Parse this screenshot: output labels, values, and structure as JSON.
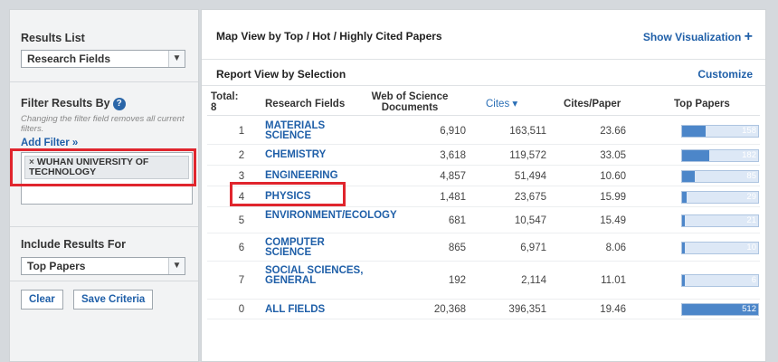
{
  "sidebar": {
    "results_list": {
      "title": "Results List",
      "selected": "Research Fields"
    },
    "filter": {
      "title": "Filter Results By",
      "hint": "Changing the filter field removes all current filters.",
      "add_filter": "Add Filter »",
      "chip_remove": "×",
      "chip_text": "WUHAN UNIVERSITY OF TECHNOLOGY"
    },
    "include": {
      "title": "Include Results For",
      "selected": "Top Papers"
    },
    "buttons": {
      "clear": "Clear",
      "save": "Save Criteria"
    }
  },
  "main": {
    "map_view_title": "Map View by Top / Hot / Highly Cited Papers",
    "show_visualization": "Show Visualization",
    "show_visualization_icon": "+",
    "report_title": "Report View by Selection",
    "customize": "Customize",
    "columns": {
      "total_label": "Total:",
      "total_value": "8",
      "field": "Research Fields",
      "wos": "Web of Science Documents",
      "cites": "Cites ▾",
      "cpp": "Cites/Paper",
      "top": "Top Papers"
    },
    "rows": [
      {
        "num": "1",
        "field": "MATERIALS SCIENCE",
        "wos": "6,910",
        "cites": "163,511",
        "cpp": "23.66",
        "top": "158"
      },
      {
        "num": "2",
        "field": "CHEMISTRY",
        "wos": "3,618",
        "cites": "119,572",
        "cpp": "33.05",
        "top": "182"
      },
      {
        "num": "3",
        "field": "ENGINEERING",
        "wos": "4,857",
        "cites": "51,494",
        "cpp": "10.60",
        "top": "85"
      },
      {
        "num": "4",
        "field": "PHYSICS",
        "wos": "1,481",
        "cites": "23,675",
        "cpp": "15.99",
        "top": "29"
      },
      {
        "num": "5",
        "field": "ENVIRONMENT/ECOLOGY",
        "wos": "681",
        "cites": "10,547",
        "cpp": "15.49",
        "top": "21"
      },
      {
        "num": "6",
        "field": "COMPUTER SCIENCE",
        "wos": "865",
        "cites": "6,971",
        "cpp": "8.06",
        "top": "10"
      },
      {
        "num": "7",
        "field": "SOCIAL SCIENCES, GENERAL",
        "wos": "192",
        "cites": "2,114",
        "cpp": "11.01",
        "top": "6"
      },
      {
        "num": "0",
        "field": "ALL FIELDS",
        "wos": "20,368",
        "cites": "396,351",
        "cpp": "19.46",
        "top": "512"
      }
    ]
  },
  "colors": {
    "link": "#1f5fa8",
    "bar": "#4c86c9",
    "highlight": "#e0252d"
  },
  "icons": {
    "help": "help-icon",
    "dropdown": "chevron-down-icon",
    "remove": "close-icon",
    "add": "plus-icon"
  }
}
